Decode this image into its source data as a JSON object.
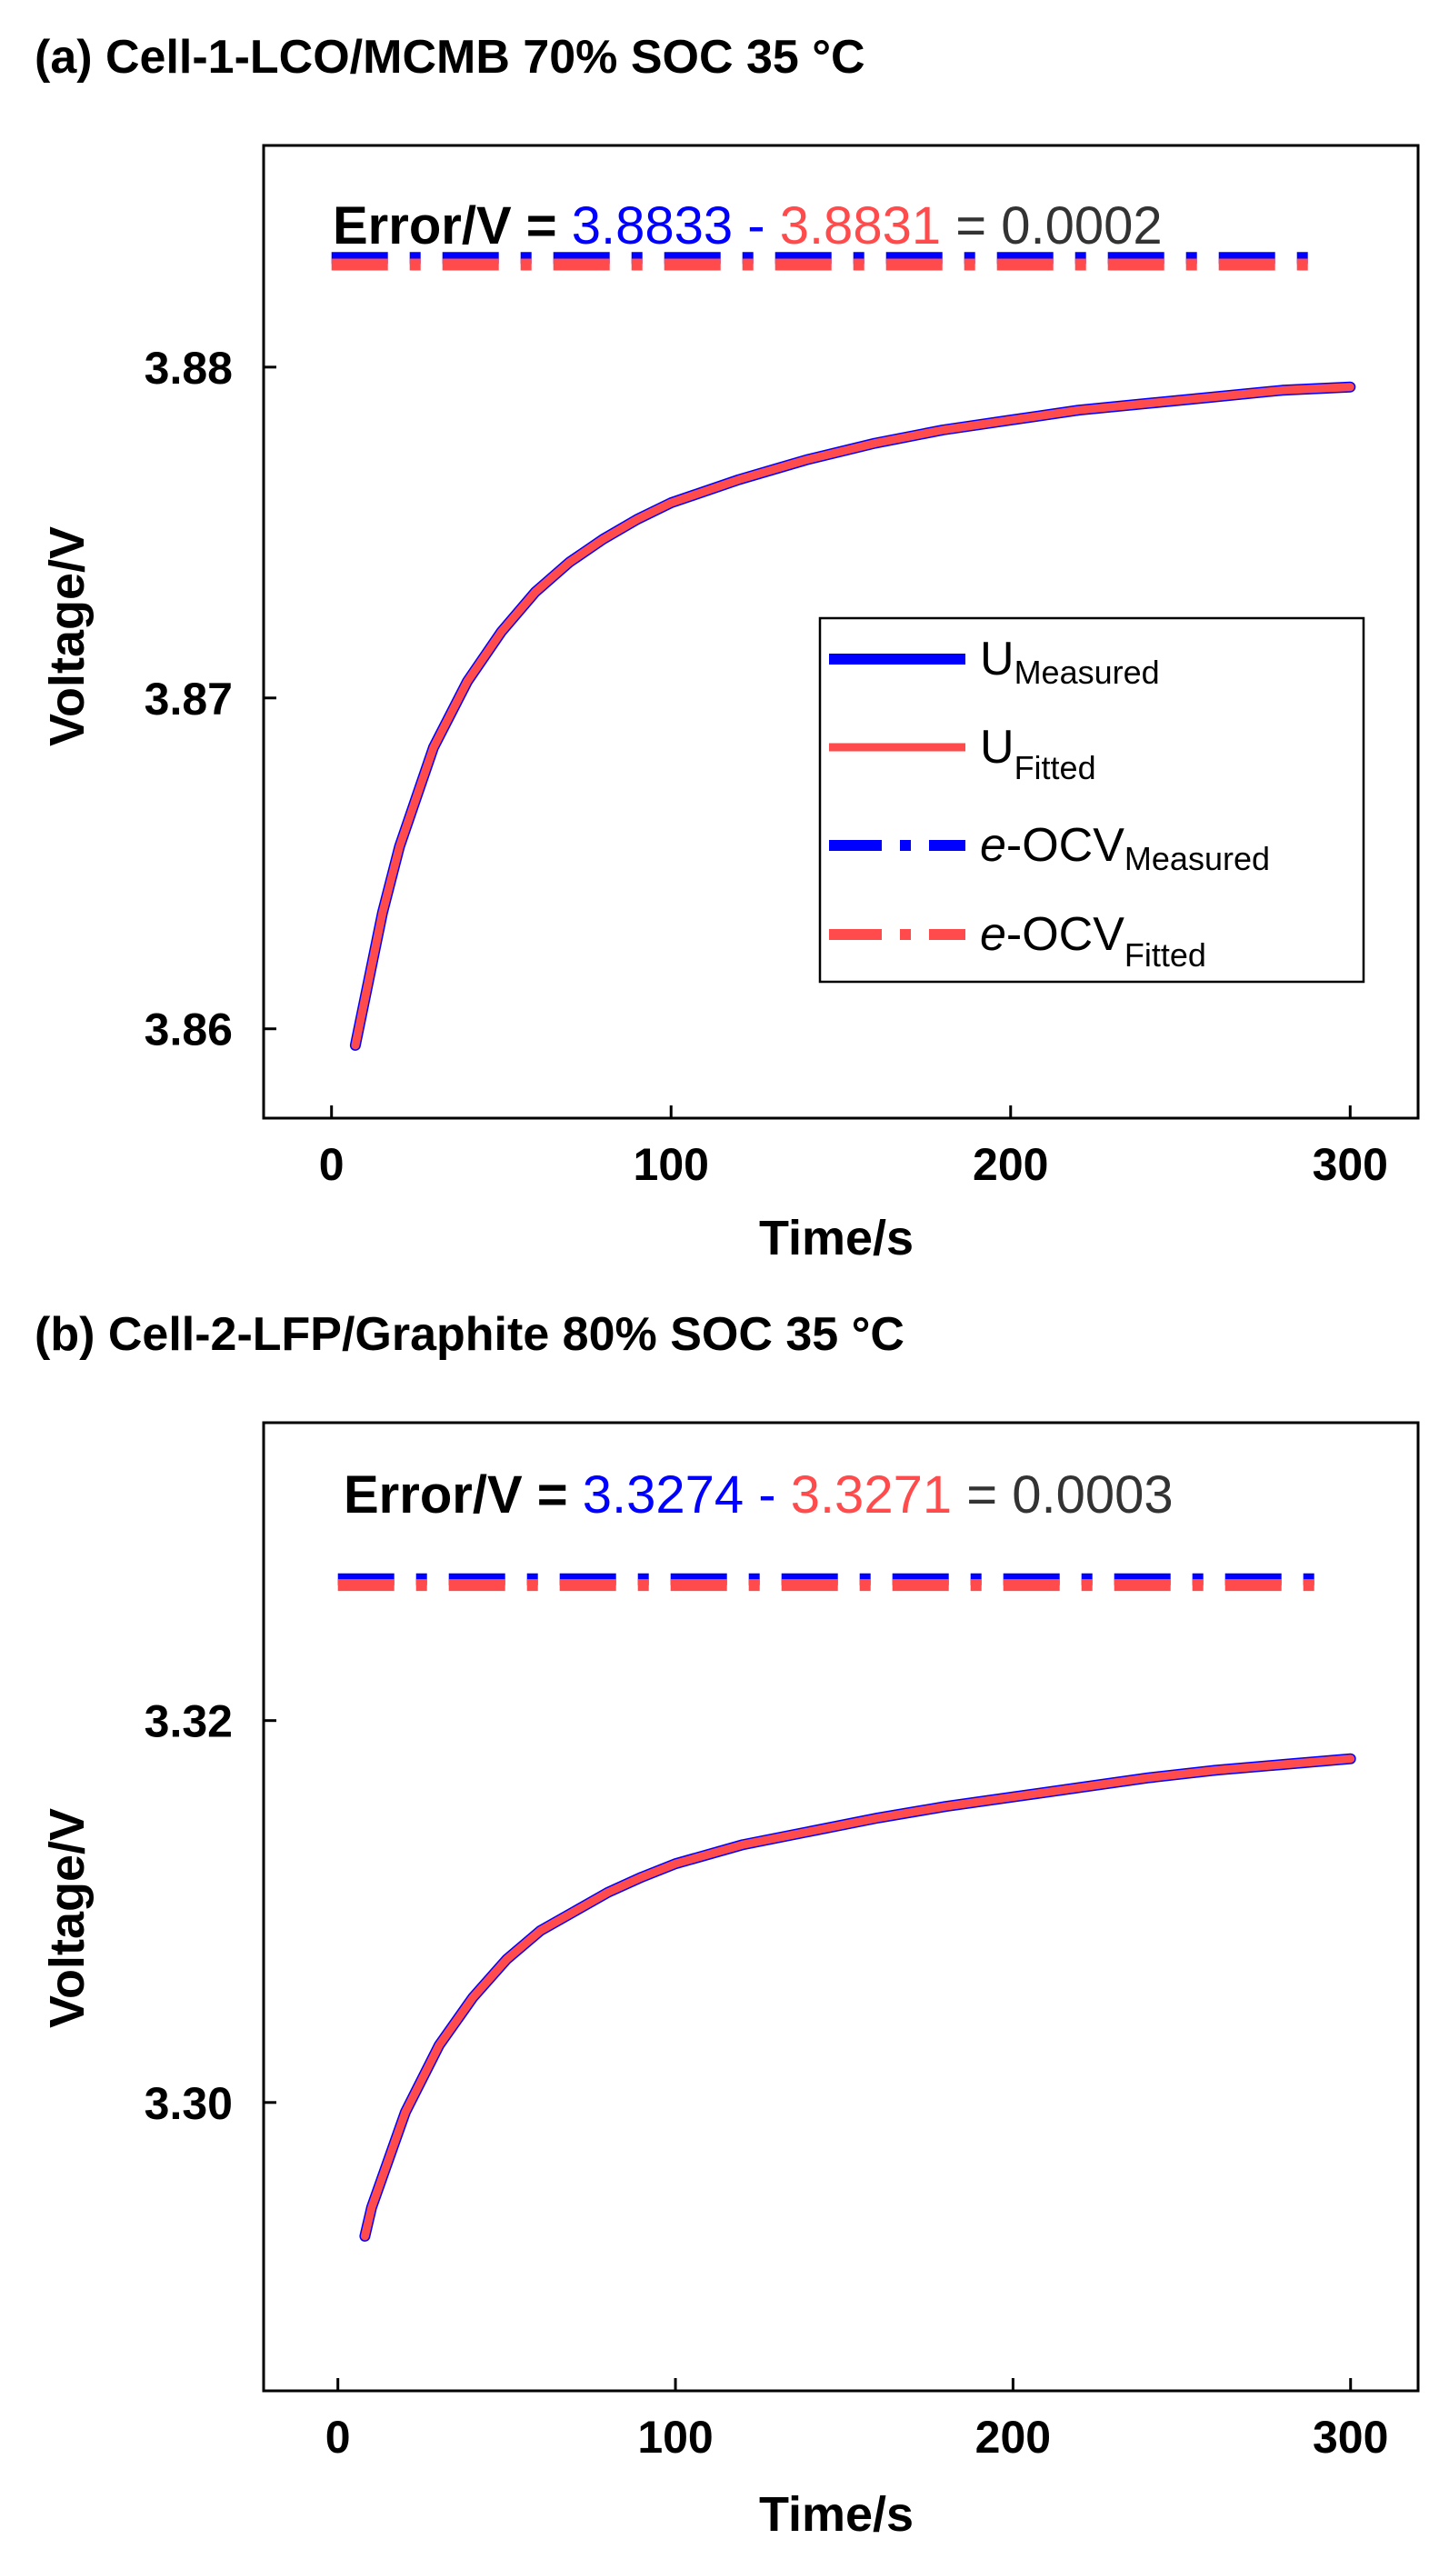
{
  "colors": {
    "measured": "#0000ff",
    "fitted": "#ff4b4b",
    "axis": "#000000",
    "value_text": "#333333"
  },
  "legend_items": [
    {
      "key": "u_measured",
      "prefix": "",
      "main": "U",
      "sub": "Measured",
      "style": "solid",
      "color_key": "measured"
    },
    {
      "key": "u_fitted",
      "prefix": "",
      "main": "U",
      "sub": "Fitted",
      "style": "solid",
      "color_key": "fitted"
    },
    {
      "key": "ocv_measured",
      "prefix": "e",
      "main": "-OCV",
      "sub": "Measured",
      "style": "dashdot",
      "color_key": "measured"
    },
    {
      "key": "ocv_fitted",
      "prefix": "e",
      "main": "-OCV",
      "sub": "Fitted",
      "style": "dashdot",
      "color_key": "fitted"
    }
  ],
  "chart_data": [
    {
      "type": "line",
      "title": "(a) Cell-1-LCO/MCMB 70% SOC 35 °C",
      "xlabel": "Time/s",
      "ylabel": "Voltage/V",
      "xlim": [
        -20,
        320
      ],
      "ylim": [
        3.8573,
        3.8867
      ],
      "xticks": [
        0,
        100,
        200,
        300
      ],
      "yticks": [
        3.86,
        3.87,
        3.88
      ],
      "ytick_labels": [
        "3.86",
        "3.87",
        "3.88"
      ],
      "grid": false,
      "legend_position": "center-right",
      "annotation": {
        "prefix": "Error/V = ",
        "measured": "3.8833",
        "minus": " - ",
        "fitted": "3.8831",
        "equals": " = 0.0002"
      },
      "series": [
        {
          "name": "U Measured",
          "style": "solid",
          "x": [
            7,
            10,
            15,
            20,
            30,
            40,
            50,
            60,
            70,
            80,
            90,
            100,
            120,
            140,
            160,
            180,
            200,
            220,
            240,
            260,
            280,
            300
          ],
          "y": [
            3.8595,
            3.861,
            3.8635,
            3.8655,
            3.8685,
            3.8705,
            3.872,
            3.8732,
            3.8741,
            3.8748,
            3.8754,
            3.8759,
            3.8766,
            3.8772,
            3.8777,
            3.8781,
            3.8784,
            3.8787,
            3.8789,
            3.8791,
            3.8793,
            3.8794
          ]
        },
        {
          "name": "U Fitted",
          "style": "solid",
          "x": [
            7,
            10,
            15,
            20,
            30,
            40,
            50,
            60,
            70,
            80,
            90,
            100,
            120,
            140,
            160,
            180,
            200,
            220,
            240,
            260,
            280,
            300
          ],
          "y": [
            3.8595,
            3.861,
            3.8635,
            3.8655,
            3.8685,
            3.8705,
            3.872,
            3.8732,
            3.8741,
            3.8748,
            3.8754,
            3.8759,
            3.8766,
            3.8772,
            3.8777,
            3.8781,
            3.8784,
            3.8787,
            3.8789,
            3.8791,
            3.8793,
            3.8794
          ]
        },
        {
          "name": "e-OCV Measured",
          "style": "dashdot",
          "x": [
            0,
            290
          ],
          "y": [
            3.8833,
            3.8833
          ]
        },
        {
          "name": "e-OCV Fitted",
          "style": "dashdot",
          "x": [
            0,
            290
          ],
          "y": [
            3.8831,
            3.8831
          ]
        }
      ]
    },
    {
      "type": "line",
      "title": "(b) Cell-2-LFP/Graphite 80% SOC 35 °C",
      "xlabel": "Time/s",
      "ylabel": "Voltage/V",
      "xlim": [
        -22,
        320
      ],
      "ylim": [
        3.2849,
        3.3356
      ],
      "xticks": [
        0,
        100,
        200,
        300
      ],
      "yticks": [
        3.3,
        3.32
      ],
      "ytick_labels": [
        "3.30",
        "3.32"
      ],
      "grid": false,
      "annotation": {
        "prefix": "Error/V = ",
        "measured": "3.3274",
        "minus": " - ",
        "fitted": "3.3271",
        "equals": " = 0.0003"
      },
      "series": [
        {
          "name": "U Measured",
          "style": "solid",
          "x": [
            8,
            10,
            15,
            20,
            30,
            40,
            50,
            60,
            70,
            80,
            90,
            100,
            120,
            140,
            160,
            180,
            200,
            220,
            240,
            260,
            280,
            300
          ],
          "y": [
            3.293,
            3.2945,
            3.297,
            3.2995,
            3.303,
            3.3055,
            3.3075,
            3.309,
            3.31,
            3.311,
            3.3118,
            3.3125,
            3.3135,
            3.3142,
            3.3149,
            3.3155,
            3.316,
            3.3165,
            3.317,
            3.3174,
            3.3177,
            3.318
          ]
        },
        {
          "name": "U Fitted",
          "style": "solid",
          "x": [
            8,
            10,
            15,
            20,
            30,
            40,
            50,
            60,
            70,
            80,
            90,
            100,
            120,
            140,
            160,
            180,
            200,
            220,
            240,
            260,
            280,
            300
          ],
          "y": [
            3.293,
            3.2945,
            3.297,
            3.2995,
            3.303,
            3.3055,
            3.3075,
            3.309,
            3.31,
            3.311,
            3.3118,
            3.3125,
            3.3135,
            3.3142,
            3.3149,
            3.3155,
            3.316,
            3.3165,
            3.317,
            3.3174,
            3.3177,
            3.318
          ]
        },
        {
          "name": "e-OCV Measured",
          "style": "dashdot",
          "x": [
            0,
            290
          ],
          "y": [
            3.3274,
            3.3274
          ]
        },
        {
          "name": "e-OCV Fitted",
          "style": "dashdot",
          "x": [
            0,
            290
          ],
          "y": [
            3.3271,
            3.3271
          ]
        }
      ]
    }
  ]
}
